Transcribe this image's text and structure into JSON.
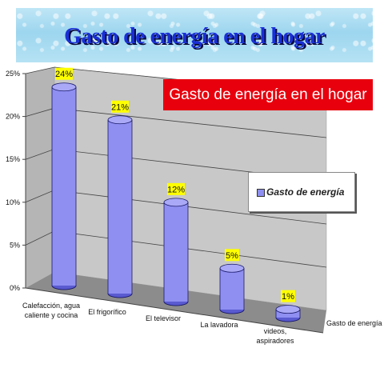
{
  "banner": {
    "title": "Gasto de energía en el hogar"
  },
  "chart_data": {
    "type": "bar",
    "title": "Gasto de energía en el hogar",
    "categories": [
      "Calefacción, agua caliente y cocina",
      "El frigorífico",
      "El televisor",
      "La lavadora",
      "videos, aspiradores"
    ],
    "category_lines": [
      [
        "Calefacción, agua",
        "caliente y cocina"
      ],
      [
        "El frigorífico"
      ],
      [
        "El televisor"
      ],
      [
        "La lavadora"
      ],
      [
        "videos,",
        "aspiradores"
      ]
    ],
    "series": [
      {
        "name": "Gasto de energía",
        "values": [
          24,
          21,
          12,
          5,
          1
        ]
      }
    ],
    "data_labels": [
      "24%",
      "21%",
      "12%",
      "5%",
      "1%"
    ],
    "y_ticks": [
      "0%",
      "5%",
      "10%",
      "15%",
      "20%",
      "25%"
    ],
    "ylim": [
      0,
      25
    ],
    "depth_axis_label": "Gasto de energía",
    "legend_position": "right",
    "grid": true,
    "bar_style": "3d-cylinder",
    "colors": {
      "bar": "#8f8ff2",
      "bar_dark": "#5a5ad0",
      "wall": "#c8c8c8",
      "floor": "#8c8c8c",
      "label_bg": "#ffff00",
      "title_bg": "#e8000d"
    }
  }
}
